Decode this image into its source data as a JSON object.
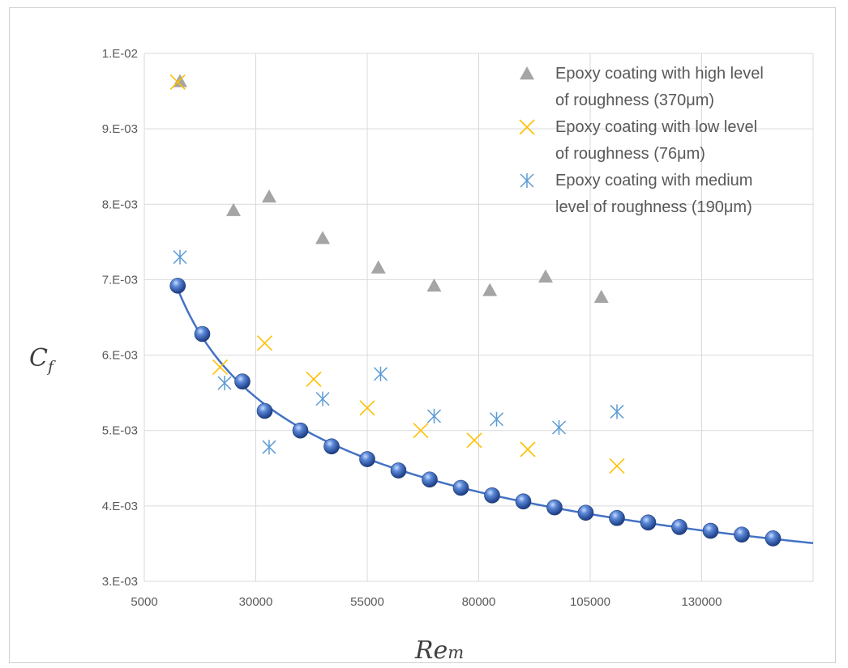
{
  "chart_data": {
    "type": "scatter",
    "title": "",
    "xlabel": "Re",
    "xlabel_sub": "m",
    "ylabel": "C",
    "ylabel_sub": "f",
    "xlim": [
      5000,
      155000
    ],
    "ylim": [
      0.003,
      0.01
    ],
    "x_ticks": [
      5000,
      30000,
      55000,
      80000,
      105000,
      130000
    ],
    "x_tick_labels": [
      "5000",
      "30000",
      "55000",
      "80000",
      "105000",
      "130000"
    ],
    "y_ticks": [
      0.003,
      0.004,
      0.005,
      0.006,
      0.007,
      0.008,
      0.009,
      0.01
    ],
    "y_tick_labels": [
      "3.E-03",
      "4.E-03",
      "5.E-03",
      "6.E-03",
      "7.E-03",
      "8.E-03",
      "9.E-03",
      "1.E-02"
    ],
    "grid": true,
    "legend_position": "top-right",
    "series": [
      {
        "name": "Epoxy coating with high level of roughness (370μm)",
        "legend_lines": [
          "Epoxy coating with high level",
          "of roughness (370μm)"
        ],
        "marker": "triangle",
        "color": "#a5a5a5",
        "x": [
          13000,
          25000,
          33000,
          45000,
          57500,
          70000,
          82500,
          95000,
          107500
        ],
        "y": [
          0.00963,
          0.00792,
          0.0081,
          0.00755,
          0.00716,
          0.00692,
          0.00686,
          0.00704,
          0.00677
        ]
      },
      {
        "name": "Epoxy coating with low level of roughness (76μm)",
        "legend_lines": [
          "Epoxy coating with low level",
          "of roughness (76μm)"
        ],
        "marker": "x",
        "color": "#ffc000",
        "x": [
          12500,
          22000,
          32000,
          43000,
          55000,
          67000,
          79000,
          91000,
          111000
        ],
        "y": [
          0.00962,
          0.00584,
          0.00616,
          0.00568,
          0.0053,
          0.005,
          0.00487,
          0.00475,
          0.00453
        ]
      },
      {
        "name": "Epoxy coating with medium level of roughness (190μm)",
        "legend_lines": [
          "Epoxy coating with medium",
          "level of roughness (190μm)"
        ],
        "marker": "asterisk",
        "color": "#5b9bd5",
        "x": [
          13000,
          23000,
          33000,
          45000,
          58000,
          70000,
          84000,
          98000,
          111000
        ],
        "y": [
          0.0073,
          0.00563,
          0.00478,
          0.00542,
          0.00575,
          0.00519,
          0.00515,
          0.00504,
          0.00525
        ]
      },
      {
        "name": "",
        "marker": "sphere",
        "color": "#4472c4",
        "x": [
          12500,
          18000,
          27000,
          32000,
          40000,
          47000,
          55000,
          62000,
          69000,
          76000,
          83000,
          90000,
          97000,
          104000,
          111000,
          118000,
          125000,
          132000,
          139000,
          146000
        ],
        "y": [
          0.00692,
          0.00628,
          0.00565,
          0.00526,
          0.005,
          0.00479,
          0.00462,
          0.00447,
          0.00435,
          0.00424,
          0.00414,
          0.00406,
          0.00398,
          0.00391,
          0.00384,
          0.00378,
          0.00372,
          0.00367,
          0.00362,
          0.00357
        ]
      }
    ],
    "fit_curve": {
      "type": "power",
      "color": "#4472c4",
      "x_range": [
        12500,
        155000
      ]
    }
  }
}
